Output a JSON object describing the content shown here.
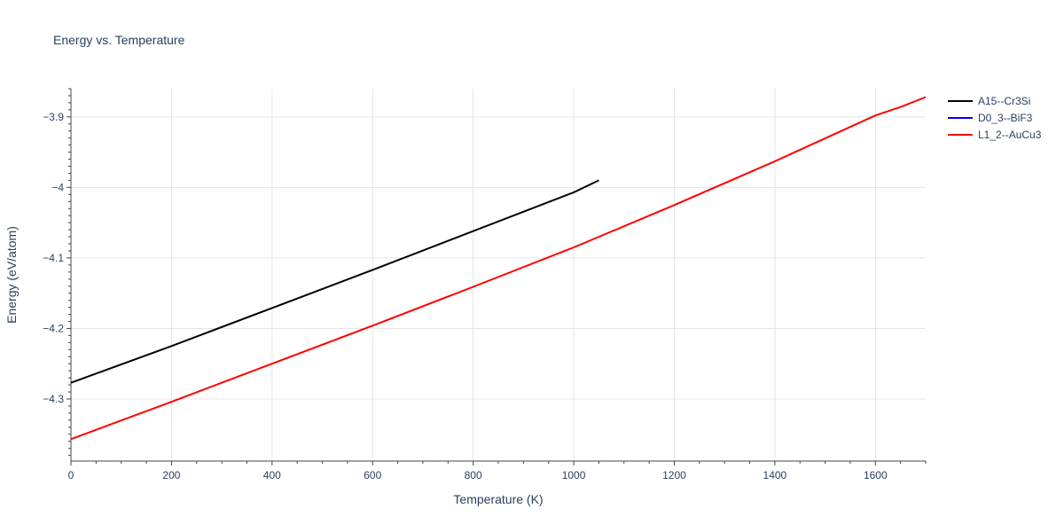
{
  "chart_data": {
    "type": "line",
    "title": "Energy vs. Temperature",
    "xlabel": "Temperature (K)",
    "ylabel": "Energy (eV/atom)",
    "xlim": [
      0,
      1700
    ],
    "ylim": [
      -4.388,
      -3.86
    ],
    "x_ticks": [
      0,
      200,
      400,
      600,
      800,
      1000,
      1200,
      1400,
      1600
    ],
    "x_tick_labels": [
      "0",
      "200",
      "400",
      "600",
      "800",
      "1000",
      "1200",
      "1400",
      "1600"
    ],
    "y_ticks": [
      -3.9,
      -4.0,
      -4.1,
      -4.2,
      -4.3
    ],
    "y_tick_labels": [
      "−3.9",
      "−4",
      "−4.1",
      "−4.2",
      "−4.3"
    ],
    "grid": true,
    "legend_position": "right",
    "series": [
      {
        "name": "A15--Cr3Si",
        "color": "#000000",
        "x": [
          0,
          200,
          400,
          600,
          800,
          1000,
          1050
        ],
        "y": [
          -4.277,
          -4.225,
          -4.171,
          -4.117,
          -4.062,
          -4.007,
          -3.99
        ]
      },
      {
        "name": "D0_3--BiF3",
        "color": "#0000ff",
        "x": [],
        "y": []
      },
      {
        "name": "L1_2--AuCu3",
        "color": "#ff0000",
        "x": [
          0,
          200,
          400,
          600,
          800,
          1000,
          1200,
          1400,
          1600,
          1650,
          1700
        ],
        "y": [
          -4.357,
          -4.304,
          -4.25,
          -4.196,
          -4.141,
          -4.085,
          -4.025,
          -3.963,
          -3.898,
          -3.886,
          -3.872
        ]
      }
    ]
  }
}
